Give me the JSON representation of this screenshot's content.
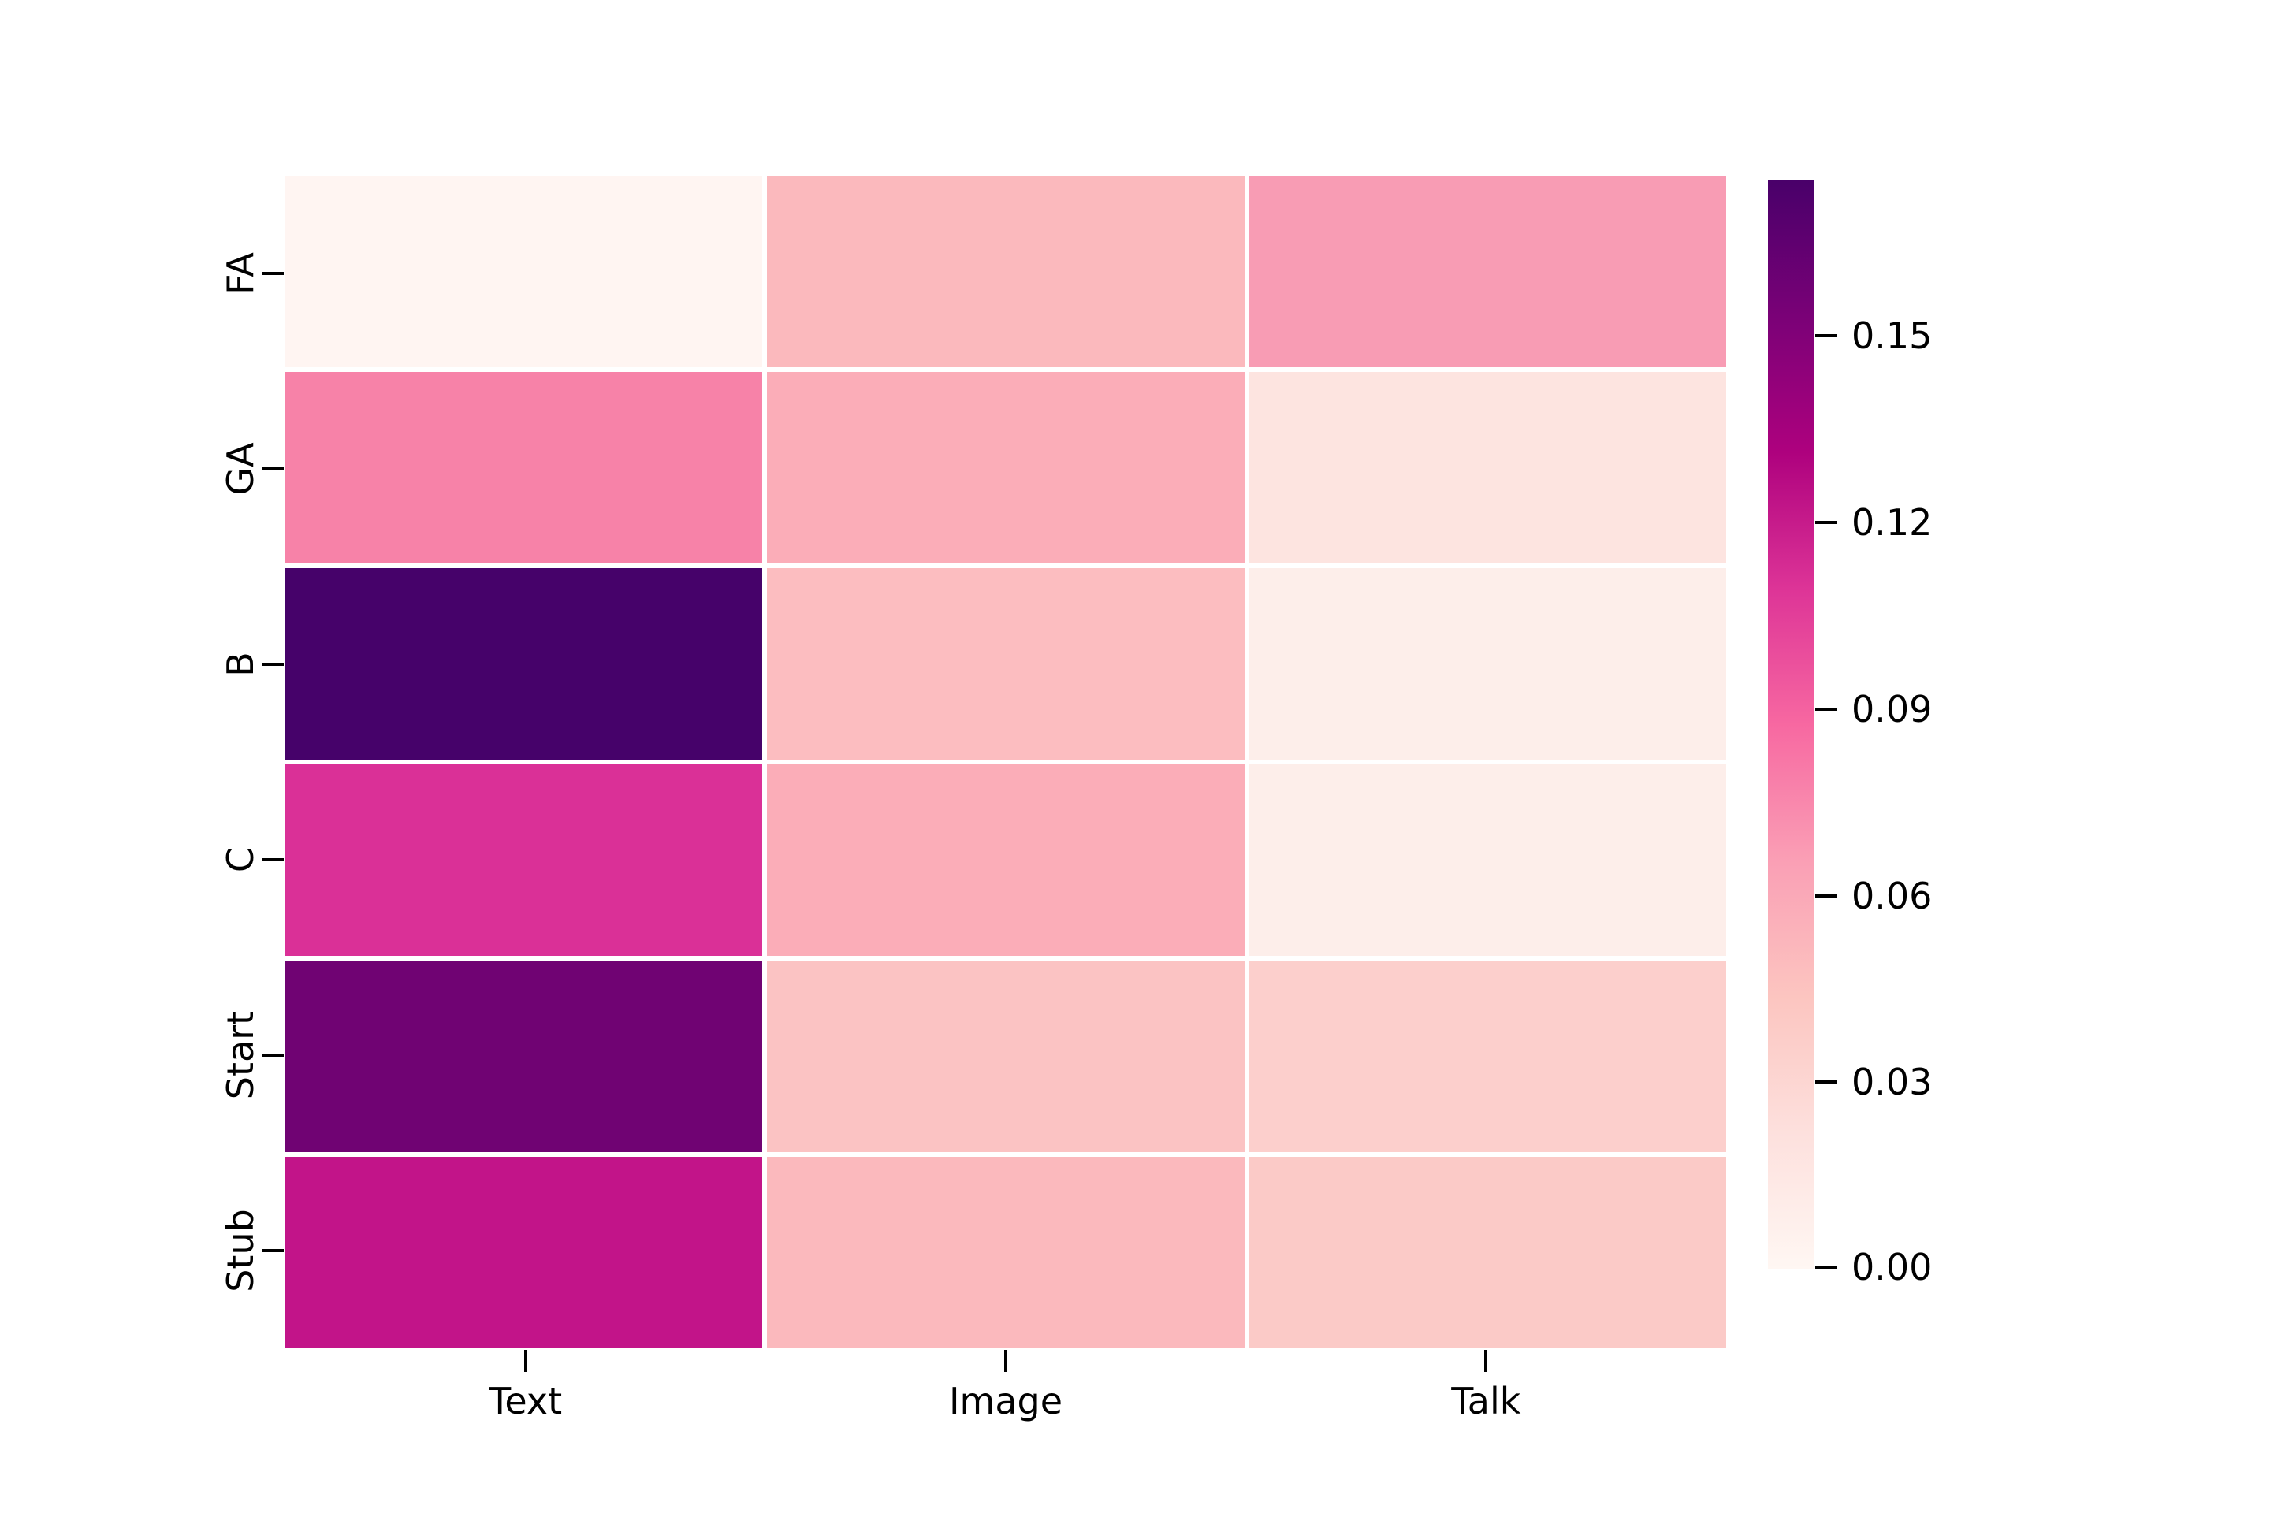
{
  "figure": {
    "background": "#ffffff",
    "colormap": "RdPu"
  },
  "chart_data": {
    "type": "heatmap",
    "rows": [
      "FA",
      "GA",
      "B",
      "C",
      "Start",
      "Stub"
    ],
    "columns": [
      "Text",
      "Image",
      "Talk"
    ],
    "values": [
      [
        0.002,
        0.051,
        0.067
      ],
      [
        0.077,
        0.058,
        0.019
      ],
      [
        0.175,
        0.048,
        0.009
      ],
      [
        0.111,
        0.058,
        0.009
      ],
      [
        0.158,
        0.045,
        0.036
      ],
      [
        0.122,
        0.051,
        0.04
      ]
    ],
    "cell_colors": [
      [
        "#fff5f2",
        "#fbb9bd",
        "#f89cb4"
      ],
      [
        "#f782a8",
        "#fbadb8",
        "#fde4e0"
      ],
      [
        "#46026a",
        "#fcbdc0",
        "#fdeeea"
      ],
      [
        "#da3097",
        "#fbadb8",
        "#fdeeea"
      ],
      [
        "#700373",
        "#fbc3c3",
        "#fccfcc"
      ],
      [
        "#c21489",
        "#fbb9bd",
        "#fbcac7"
      ]
    ],
    "colorbar": {
      "vmin": 0.0,
      "vmax": 0.175,
      "tick_labels": [
        "0.15",
        "0.12",
        "0.09",
        "0.06",
        "0.03",
        "0.00"
      ],
      "tick_values": [
        0.15,
        0.12,
        0.09,
        0.06,
        0.03,
        0.0
      ],
      "gradient_stops": [
        "#fff7f3",
        "#fde0dd",
        "#fcc5c0",
        "#fa9fb5",
        "#f768a1",
        "#dd3497",
        "#ae017e",
        "#7a0177",
        "#49006a"
      ]
    },
    "cell_gap_color": "#ffffff",
    "legend_position": "right",
    "grid": false
  }
}
